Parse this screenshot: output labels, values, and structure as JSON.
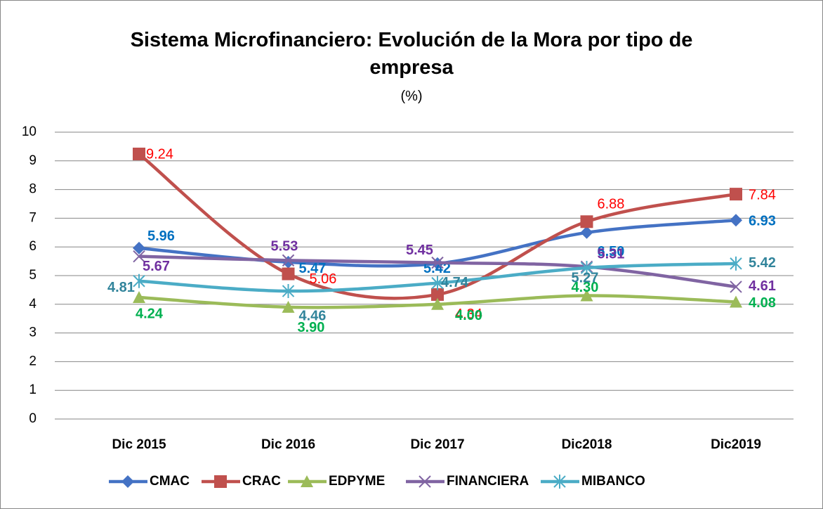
{
  "chart_data": {
    "type": "line",
    "title": "Sistema Microfinanciero: Evolución de la Mora por tipo de empresa",
    "subtitle": "(%)",
    "categories": [
      "Dic 2015",
      "Dic 2016",
      "Dic 2017",
      "Dic2018",
      "Dic2019"
    ],
    "ylim": [
      0,
      10
    ],
    "yticks": [
      0,
      1,
      2,
      3,
      4,
      5,
      6,
      7,
      8,
      9,
      10
    ],
    "grid": true,
    "legend": "bottom",
    "series": [
      {
        "name": "CMAC",
        "color": "#4472c4",
        "values": [
          5.96,
          5.47,
          5.42,
          6.5,
          6.93
        ],
        "value_labels": [
          "5.96",
          "5.47",
          "5.42",
          "6.50",
          "6.93"
        ]
      },
      {
        "name": "CRAC",
        "color": "#c0504d",
        "values": [
          9.24,
          5.06,
          4.34,
          6.88,
          7.84
        ],
        "value_labels": [
          "9.24",
          "5.06",
          "4.34",
          "6.88",
          "7.84"
        ]
      },
      {
        "name": "EDPYME",
        "color": "#9bbb59",
        "values": [
          4.24,
          3.9,
          4.0,
          4.3,
          4.08
        ],
        "value_labels": [
          "4.24",
          "3.90",
          "4.00",
          "4.30",
          "4.08"
        ]
      },
      {
        "name": "FINANCIERA",
        "color": "#8064a2",
        "values": [
          5.67,
          5.53,
          5.45,
          5.31,
          4.61
        ],
        "value_labels": [
          "5.67",
          "5.53",
          "5.45",
          "5.31",
          "4.61"
        ]
      },
      {
        "name": "MIBANCO",
        "color": "#4bacc6",
        "values": [
          4.81,
          4.46,
          4.74,
          5.27,
          5.42
        ],
        "value_labels": [
          "4.81",
          "4.46",
          "4.74",
          "5.27",
          "5.42"
        ]
      }
    ]
  }
}
